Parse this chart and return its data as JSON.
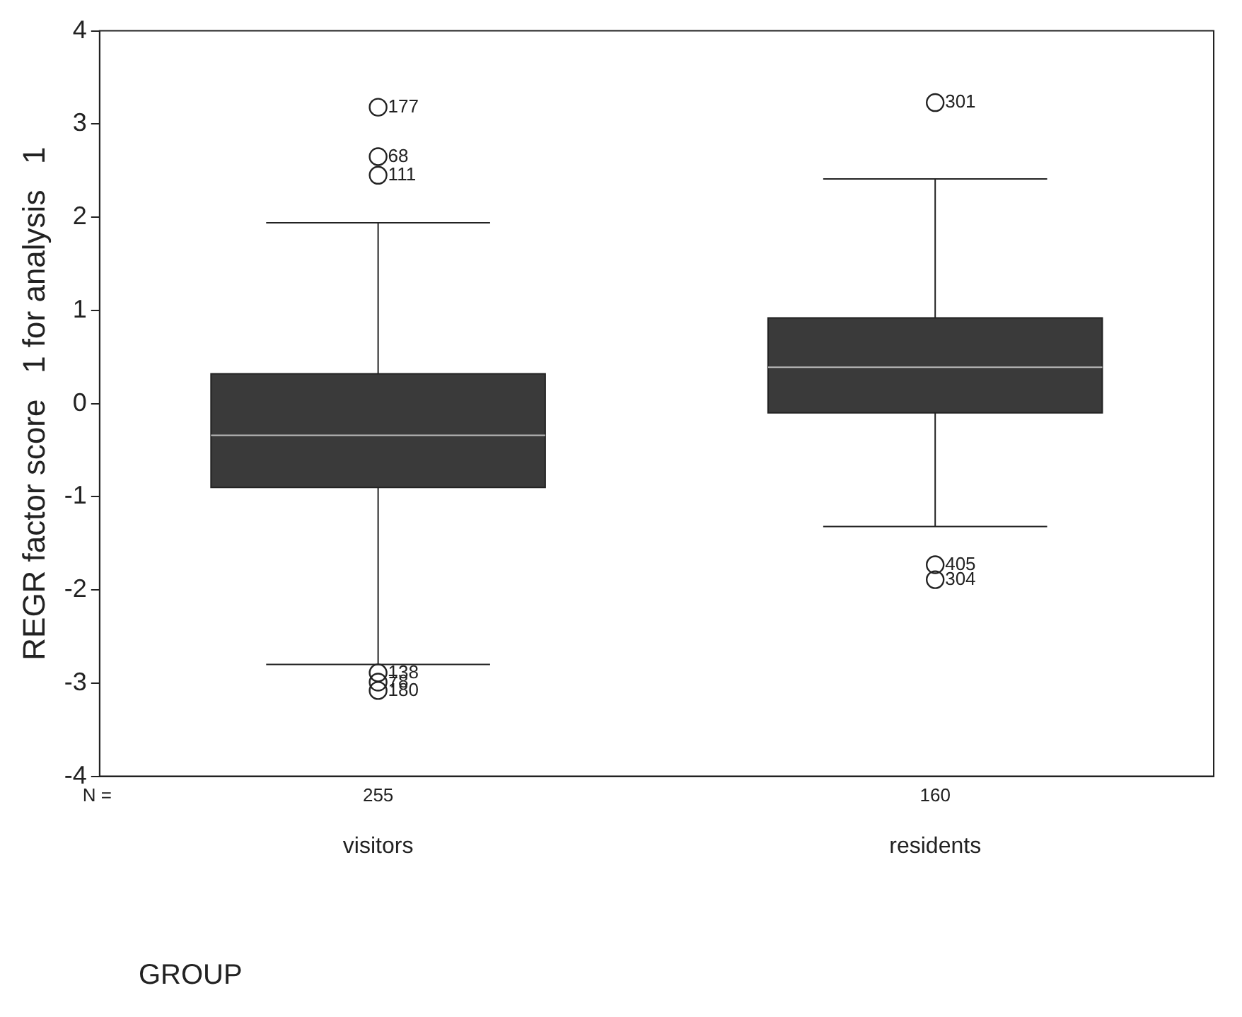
{
  "chart_data": {
    "type": "box",
    "ylabel": "REGR factor score   1 for analysis   1",
    "xlabel": "GROUP",
    "categories": [
      "visitors",
      "residents"
    ],
    "boxes": [
      {
        "low": -2.8,
        "q1": -0.9,
        "median": -0.34,
        "q3": 0.32,
        "high": 1.94,
        "outliers": [
          3.18,
          2.65,
          2.45,
          -2.89,
          -2.99,
          -3.08
        ]
      },
      {
        "low": -1.32,
        "q1": -0.1,
        "median": 0.39,
        "q3": 0.92,
        "high": 2.41,
        "outliers": [
          3.23,
          -1.73,
          -1.89
        ]
      }
    ],
    "color": "#3a3a3a",
    "ylim": [
      -4,
      4
    ],
    "yticks": [
      -4,
      -3,
      -2,
      -1,
      0,
      1,
      2,
      3,
      4
    ],
    "grid": false,
    "marker": "circle",
    "annotations": [
      "177",
      "68",
      "111",
      "138",
      "78",
      "180",
      "301",
      "405",
      "304",
      "N =",
      "255",
      "160"
    ]
  }
}
